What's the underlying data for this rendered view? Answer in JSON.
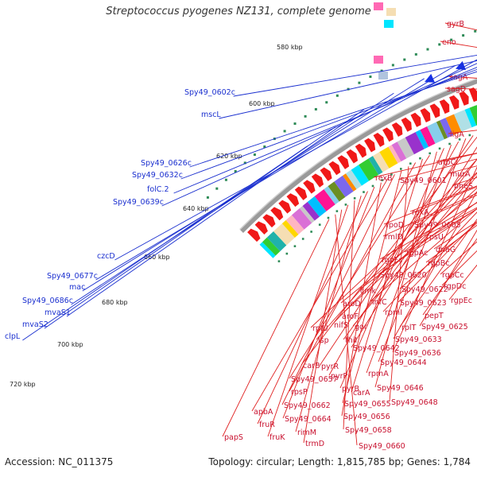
{
  "title": "Streptococcus pyogenes NZ131, complete genome",
  "footer": {
    "accession": "Accession: NC_011375",
    "summary": "Topology: circular; Length: 1,815,785 bp; Genes: 1,784"
  },
  "ticks": [
    "580 kbp",
    "600 kbp",
    "620 kbp",
    "640 kbp",
    "660 kbp",
    "680 kbp",
    "700 kbp",
    "720 kbp"
  ],
  "red_labels": [
    "gyrB",
    "eno",
    "sagA",
    "sagD",
    "ligA",
    "atpC",
    "murA",
    "pheS",
    "rexB",
    "Spy49_0601",
    "rexA",
    "rpoD",
    "Spy49_0605",
    "rmlD",
    "rpsU",
    "dnaG",
    "rgpAc",
    "rgpFc",
    "rgpBc",
    "Spy49_0620",
    "rgpCc",
    "rgpDc",
    "Spy49_0622",
    "cmk",
    "rgpEc",
    "infC",
    "Spy49_0623",
    "aroD",
    "rpmI",
    "pepT",
    "aroF",
    "rplT",
    "Spy49_0625",
    "rplU",
    "nifS",
    "gor",
    "Spy49_0633",
    "lsp",
    "thiI",
    "Spy49_0636",
    "Spy49_0642",
    "carB",
    "pyrR",
    "Spy49_0644",
    "pyrP",
    "rpmA",
    "pyrB",
    "Spy49_0646",
    "Spy49_0657",
    "carA",
    "rpsP",
    "Spy49_0648",
    "Spy49_0655",
    "Spy49_0662",
    "apbA",
    "Spy49_0656",
    "Spy49_0664",
    "fruR",
    "rimM",
    "Spy49_0658",
    "fruK",
    "trmD",
    "Spy49_0660",
    "papS"
  ],
  "blue_labels": [
    "Spy49_0602c",
    "mscL",
    "Spy49_0626c",
    "Spy49_0632c",
    "folC.2",
    "Spy49_0639c",
    "czcD",
    "Spy49_0677c",
    "mac",
    "Spy49_0686c",
    "mvaS1",
    "mvaS2",
    "clpL"
  ]
}
